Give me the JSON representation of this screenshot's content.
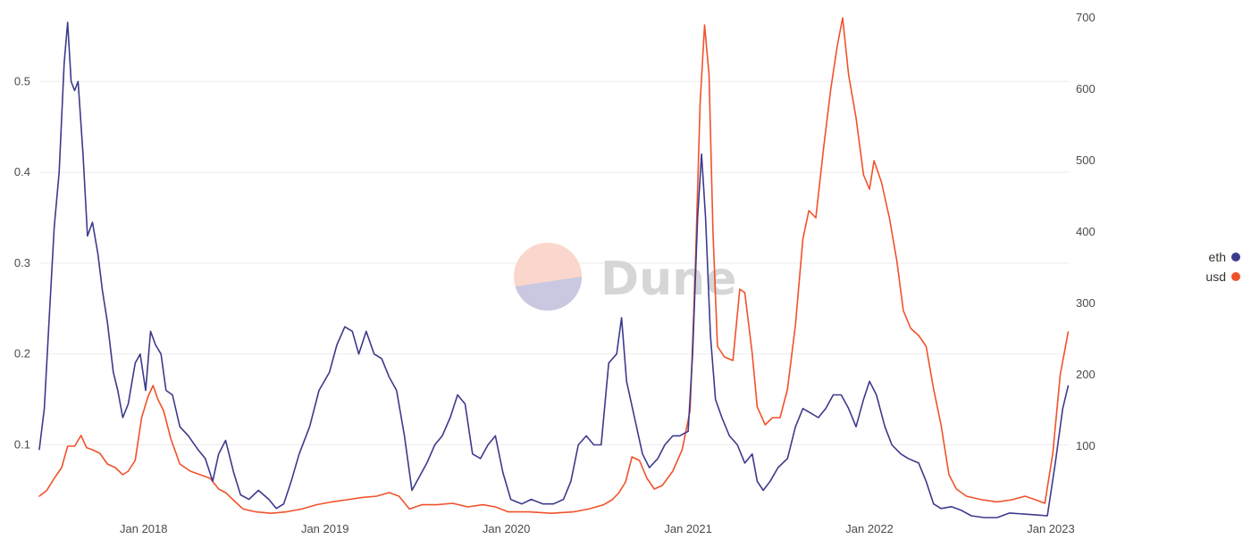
{
  "watermark": {
    "text": "Dune"
  },
  "chart_data": {
    "type": "line",
    "title": "",
    "xlabel": "",
    "x_ticks": [
      "Jan 2018",
      "Jan 2019",
      "Jan 2020",
      "Jan 2021",
      "Jan 2022",
      "Jan 2023"
    ],
    "y_left": {
      "ticks": [
        "0.1",
        "0.2",
        "0.3",
        "0.4",
        "0.5"
      ],
      "ylim": [
        0.02,
        0.57
      ]
    },
    "y_right": {
      "ticks": [
        "100",
        "200",
        "300",
        "400",
        "500",
        "600",
        "700"
      ],
      "ylim": [
        0,
        700
      ]
    },
    "grid": true,
    "legend": {
      "placement": "right",
      "entries": [
        {
          "label": "eth",
          "color": "#3d3a8c"
        },
        {
          "label": "usd",
          "color": "#f0522a"
        }
      ]
    },
    "series": [
      {
        "name": "eth",
        "axis": "left",
        "color": "#3d3a8c",
        "points": [
          [
            "2017-06-05",
            0.095
          ],
          [
            "2017-06-15",
            0.14
          ],
          [
            "2017-06-25",
            0.24
          ],
          [
            "2017-07-05",
            0.34
          ],
          [
            "2017-07-15",
            0.4
          ],
          [
            "2017-07-25",
            0.52
          ],
          [
            "2017-08-01",
            0.565
          ],
          [
            "2017-08-08",
            0.5
          ],
          [
            "2017-08-15",
            0.49
          ],
          [
            "2017-08-22",
            0.5
          ],
          [
            "2017-09-01",
            0.42
          ],
          [
            "2017-09-10",
            0.33
          ],
          [
            "2017-09-20",
            0.345
          ],
          [
            "2017-10-01",
            0.31
          ],
          [
            "2017-10-10",
            0.27
          ],
          [
            "2017-10-20",
            0.235
          ],
          [
            "2017-11-01",
            0.18
          ],
          [
            "2017-11-10",
            0.16
          ],
          [
            "2017-11-20",
            0.13
          ],
          [
            "2017-12-01",
            0.145
          ],
          [
            "2017-12-15",
            0.19
          ],
          [
            "2017-12-25",
            0.2
          ],
          [
            "2018-01-05",
            0.16
          ],
          [
            "2018-01-15",
            0.225
          ],
          [
            "2018-01-25",
            0.21
          ],
          [
            "2018-02-05",
            0.2
          ],
          [
            "2018-02-15",
            0.16
          ],
          [
            "2018-02-28",
            0.155
          ],
          [
            "2018-03-15",
            0.12
          ],
          [
            "2018-04-01",
            0.11
          ],
          [
            "2018-04-20",
            0.095
          ],
          [
            "2018-05-05",
            0.085
          ],
          [
            "2018-05-20",
            0.06
          ],
          [
            "2018-06-01",
            0.09
          ],
          [
            "2018-06-15",
            0.105
          ],
          [
            "2018-07-01",
            0.07
          ],
          [
            "2018-07-15",
            0.045
          ],
          [
            "2018-08-01",
            0.04
          ],
          [
            "2018-08-20",
            0.05
          ],
          [
            "2018-09-10",
            0.04
          ],
          [
            "2018-09-25",
            0.03
          ],
          [
            "2018-10-10",
            0.035
          ],
          [
            "2018-10-25",
            0.06
          ],
          [
            "2018-11-10",
            0.09
          ],
          [
            "2018-12-01",
            0.12
          ],
          [
            "2018-12-20",
            0.16
          ],
          [
            "2019-01-10",
            0.18
          ],
          [
            "2019-01-25",
            0.21
          ],
          [
            "2019-02-10",
            0.23
          ],
          [
            "2019-02-25",
            0.225
          ],
          [
            "2019-03-10",
            0.2
          ],
          [
            "2019-03-25",
            0.225
          ],
          [
            "2019-04-10",
            0.2
          ],
          [
            "2019-04-25",
            0.195
          ],
          [
            "2019-05-10",
            0.175
          ],
          [
            "2019-05-25",
            0.16
          ],
          [
            "2019-06-10",
            0.11
          ],
          [
            "2019-06-25",
            0.05
          ],
          [
            "2019-07-10",
            0.065
          ],
          [
            "2019-07-25",
            0.08
          ],
          [
            "2019-08-10",
            0.1
          ],
          [
            "2019-08-25",
            0.11
          ],
          [
            "2019-09-10",
            0.13
          ],
          [
            "2019-09-25",
            0.155
          ],
          [
            "2019-10-10",
            0.145
          ],
          [
            "2019-10-25",
            0.09
          ],
          [
            "2019-11-10",
            0.085
          ],
          [
            "2019-11-25",
            0.1
          ],
          [
            "2019-12-10",
            0.11
          ],
          [
            "2019-12-25",
            0.07
          ],
          [
            "2020-01-10",
            0.04
          ],
          [
            "2020-02-01",
            0.035
          ],
          [
            "2020-02-20",
            0.04
          ],
          [
            "2020-03-15",
            0.035
          ],
          [
            "2020-04-05",
            0.035
          ],
          [
            "2020-04-25",
            0.04
          ],
          [
            "2020-05-10",
            0.06
          ],
          [
            "2020-05-25",
            0.1
          ],
          [
            "2020-06-10",
            0.11
          ],
          [
            "2020-06-25",
            0.1
          ],
          [
            "2020-07-10",
            0.1
          ],
          [
            "2020-07-25",
            0.19
          ],
          [
            "2020-08-10",
            0.2
          ],
          [
            "2020-08-20",
            0.24
          ],
          [
            "2020-08-30",
            0.17
          ],
          [
            "2020-09-15",
            0.13
          ],
          [
            "2020-10-01",
            0.09
          ],
          [
            "2020-10-15",
            0.075
          ],
          [
            "2020-11-01",
            0.085
          ],
          [
            "2020-11-15",
            0.1
          ],
          [
            "2020-12-01",
            0.11
          ],
          [
            "2020-12-15",
            0.11
          ],
          [
            "2021-01-01",
            0.115
          ],
          [
            "2021-01-10",
            0.2
          ],
          [
            "2021-01-20",
            0.35
          ],
          [
            "2021-01-28",
            0.42
          ],
          [
            "2021-02-05",
            0.35
          ],
          [
            "2021-02-15",
            0.22
          ],
          [
            "2021-02-25",
            0.15
          ],
          [
            "2021-03-10",
            0.13
          ],
          [
            "2021-03-25",
            0.11
          ],
          [
            "2021-04-10",
            0.1
          ],
          [
            "2021-04-25",
            0.08
          ],
          [
            "2021-05-10",
            0.09
          ],
          [
            "2021-05-20",
            0.06
          ],
          [
            "2021-06-01",
            0.05
          ],
          [
            "2021-06-15",
            0.06
          ],
          [
            "2021-07-01",
            0.075
          ],
          [
            "2021-07-20",
            0.085
          ],
          [
            "2021-08-05",
            0.12
          ],
          [
            "2021-08-20",
            0.14
          ],
          [
            "2021-09-05",
            0.135
          ],
          [
            "2021-09-20",
            0.13
          ],
          [
            "2021-10-05",
            0.14
          ],
          [
            "2021-10-20",
            0.155
          ],
          [
            "2021-11-05",
            0.155
          ],
          [
            "2021-11-20",
            0.14
          ],
          [
            "2021-12-05",
            0.12
          ],
          [
            "2021-12-20",
            0.15
          ],
          [
            "2022-01-01",
            0.17
          ],
          [
            "2022-01-15",
            0.155
          ],
          [
            "2022-02-01",
            0.12
          ],
          [
            "2022-02-15",
            0.1
          ],
          [
            "2022-03-05",
            0.09
          ],
          [
            "2022-03-20",
            0.085
          ],
          [
            "2022-04-10",
            0.08
          ],
          [
            "2022-04-25",
            0.06
          ],
          [
            "2022-05-10",
            0.035
          ],
          [
            "2022-05-25",
            0.03
          ],
          [
            "2022-06-15",
            0.032
          ],
          [
            "2022-07-05",
            0.028
          ],
          [
            "2022-07-25",
            0.022
          ],
          [
            "2022-08-20",
            0.02
          ],
          [
            "2022-09-15",
            0.02
          ],
          [
            "2022-10-10",
            0.025
          ],
          [
            "2022-11-05",
            0.024
          ],
          [
            "2022-12-01",
            0.023
          ],
          [
            "2022-12-25",
            0.022
          ],
          [
            "2023-01-10",
            0.08
          ],
          [
            "2023-01-25",
            0.14
          ],
          [
            "2023-02-05",
            0.165
          ]
        ]
      },
      {
        "name": "usd",
        "axis": "right",
        "color": "#f0522a",
        "points": [
          [
            "2017-06-05",
            30
          ],
          [
            "2017-06-20",
            38
          ],
          [
            "2017-07-05",
            55
          ],
          [
            "2017-07-20",
            70
          ],
          [
            "2017-08-01",
            100
          ],
          [
            "2017-08-15",
            100
          ],
          [
            "2017-08-28",
            115
          ],
          [
            "2017-09-08",
            98
          ],
          [
            "2017-09-20",
            95
          ],
          [
            "2017-10-05",
            90
          ],
          [
            "2017-10-20",
            75
          ],
          [
            "2017-11-05",
            70
          ],
          [
            "2017-11-20",
            60
          ],
          [
            "2017-12-01",
            65
          ],
          [
            "2017-12-15",
            80
          ],
          [
            "2017-12-28",
            140
          ],
          [
            "2018-01-10",
            170
          ],
          [
            "2018-01-20",
            185
          ],
          [
            "2018-01-30",
            165
          ],
          [
            "2018-02-10",
            150
          ],
          [
            "2018-02-25",
            110
          ],
          [
            "2018-03-15",
            75
          ],
          [
            "2018-04-05",
            65
          ],
          [
            "2018-04-25",
            60
          ],
          [
            "2018-05-15",
            55
          ],
          [
            "2018-06-01",
            40
          ],
          [
            "2018-06-15",
            35
          ],
          [
            "2018-06-30",
            25
          ],
          [
            "2018-07-20",
            12
          ],
          [
            "2018-08-15",
            8
          ],
          [
            "2018-09-15",
            6
          ],
          [
            "2018-10-15",
            8
          ],
          [
            "2018-11-15",
            12
          ],
          [
            "2018-12-15",
            18
          ],
          [
            "2019-01-15",
            22
          ],
          [
            "2019-02-15",
            25
          ],
          [
            "2019-03-15",
            28
          ],
          [
            "2019-04-15",
            30
          ],
          [
            "2019-05-10",
            35
          ],
          [
            "2019-05-30",
            30
          ],
          [
            "2019-06-20",
            12
          ],
          [
            "2019-07-15",
            18
          ],
          [
            "2019-08-15",
            18
          ],
          [
            "2019-09-15",
            20
          ],
          [
            "2019-10-15",
            15
          ],
          [
            "2019-11-15",
            18
          ],
          [
            "2019-12-10",
            15
          ],
          [
            "2020-01-05",
            8
          ],
          [
            "2020-02-15",
            8
          ],
          [
            "2020-04-01",
            6
          ],
          [
            "2020-05-15",
            8
          ],
          [
            "2020-06-15",
            12
          ],
          [
            "2020-07-15",
            18
          ],
          [
            "2020-08-01",
            25
          ],
          [
            "2020-08-15",
            35
          ],
          [
            "2020-08-28",
            50
          ],
          [
            "2020-09-10",
            85
          ],
          [
            "2020-09-25",
            80
          ],
          [
            "2020-10-10",
            55
          ],
          [
            "2020-10-25",
            40
          ],
          [
            "2020-11-10",
            45
          ],
          [
            "2020-12-01",
            65
          ],
          [
            "2020-12-20",
            95
          ],
          [
            "2021-01-05",
            150
          ],
          [
            "2021-01-15",
            340
          ],
          [
            "2021-01-25",
            580
          ],
          [
            "2021-02-03",
            690
          ],
          [
            "2021-02-12",
            620
          ],
          [
            "2021-02-20",
            400
          ],
          [
            "2021-03-01",
            240
          ],
          [
            "2021-03-15",
            225
          ],
          [
            "2021-04-01",
            220
          ],
          [
            "2021-04-15",
            320
          ],
          [
            "2021-04-25",
            315
          ],
          [
            "2021-05-10",
            230
          ],
          [
            "2021-05-20",
            155
          ],
          [
            "2021-06-05",
            130
          ],
          [
            "2021-06-20",
            140
          ],
          [
            "2021-07-05",
            140
          ],
          [
            "2021-07-20",
            180
          ],
          [
            "2021-08-05",
            270
          ],
          [
            "2021-08-20",
            390
          ],
          [
            "2021-09-01",
            430
          ],
          [
            "2021-09-15",
            420
          ],
          [
            "2021-10-01",
            520
          ],
          [
            "2021-10-15",
            600
          ],
          [
            "2021-10-28",
            660
          ],
          [
            "2021-11-08",
            700
          ],
          [
            "2021-11-20",
            620
          ],
          [
            "2021-12-05",
            560
          ],
          [
            "2021-12-20",
            480
          ],
          [
            "2022-01-01",
            460
          ],
          [
            "2022-01-10",
            500
          ],
          [
            "2022-01-25",
            470
          ],
          [
            "2022-02-10",
            420
          ],
          [
            "2022-02-25",
            360
          ],
          [
            "2022-03-10",
            290
          ],
          [
            "2022-03-25",
            265
          ],
          [
            "2022-04-10",
            255
          ],
          [
            "2022-04-25",
            240
          ],
          [
            "2022-05-10",
            180
          ],
          [
            "2022-05-25",
            130
          ],
          [
            "2022-06-10",
            60
          ],
          [
            "2022-06-25",
            40
          ],
          [
            "2022-07-15",
            30
          ],
          [
            "2022-08-15",
            25
          ],
          [
            "2022-09-15",
            22
          ],
          [
            "2022-10-15",
            25
          ],
          [
            "2022-11-10",
            30
          ],
          [
            "2022-12-01",
            25
          ],
          [
            "2022-12-20",
            20
          ],
          [
            "2023-01-05",
            90
          ],
          [
            "2023-01-20",
            200
          ],
          [
            "2023-02-05",
            260
          ]
        ]
      }
    ]
  }
}
